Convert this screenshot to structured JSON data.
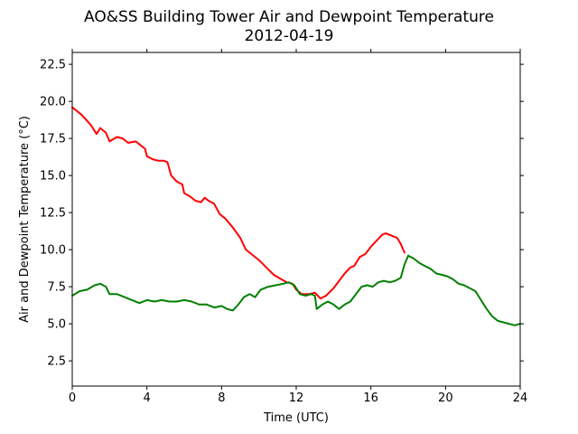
{
  "chart_data": {
    "type": "line",
    "title": "AO&SS Building Tower Air and Dewpoint Temperature",
    "subtitle": "2012-04-19",
    "xlabel": "Time (UTC)",
    "ylabel": "Air and Dewpoint Temperature (°C)",
    "xlim": [
      0,
      24
    ],
    "ylim": [
      0.8,
      23.3
    ],
    "xticks": [
      0,
      4,
      8,
      12,
      16,
      20,
      24
    ],
    "yticks": [
      2.5,
      5.0,
      7.5,
      10.0,
      12.5,
      15.0,
      17.5,
      20.0,
      22.5
    ],
    "grid": false,
    "series": [
      {
        "color": "#ff0000",
        "x": [
          0.0,
          0.5,
          1.0,
          1.3,
          1.5,
          1.8,
          2.0,
          2.4,
          2.7,
          3.0,
          3.4,
          3.7,
          3.9,
          4.0,
          4.3,
          4.6,
          4.9,
          5.1,
          5.3,
          5.6,
          5.9,
          6.0,
          6.3,
          6.6,
          6.9,
          7.1,
          7.3,
          7.6,
          7.9,
          8.2,
          8.6,
          9.0,
          9.3,
          9.6,
          10.0,
          10.4,
          10.8,
          11.2,
          11.5,
          11.8,
          12.0,
          12.3,
          12.7,
          13.0,
          13.3,
          13.6,
          14.0,
          14.3,
          14.6,
          14.9,
          15.1,
          15.4,
          15.7,
          16.0,
          16.3,
          16.6,
          16.8,
          17.0,
          17.2,
          17.4,
          17.6,
          17.8
        ],
        "y": [
          19.6,
          19.1,
          18.4,
          17.8,
          18.2,
          17.9,
          17.3,
          17.6,
          17.5,
          17.2,
          17.3,
          17.0,
          16.8,
          16.3,
          16.1,
          16.0,
          16.0,
          15.9,
          15.0,
          14.6,
          14.4,
          13.8,
          13.6,
          13.3,
          13.2,
          13.5,
          13.3,
          13.1,
          12.4,
          12.1,
          11.5,
          10.8,
          10.0,
          9.7,
          9.3,
          8.8,
          8.3,
          8.0,
          7.8,
          7.7,
          7.3,
          7.0,
          7.0,
          7.1,
          6.7,
          6.9,
          7.4,
          7.9,
          8.4,
          8.8,
          8.9,
          9.5,
          9.7,
          10.2,
          10.6,
          11.0,
          11.1,
          11.0,
          10.9,
          10.8,
          10.4,
          9.8
        ]
      },
      {
        "color": "#008000",
        "x": [
          0.0,
          0.4,
          0.8,
          1.2,
          1.5,
          1.8,
          2.0,
          2.4,
          2.8,
          3.2,
          3.6,
          4.0,
          4.4,
          4.8,
          5.2,
          5.6,
          6.0,
          6.4,
          6.8,
          7.2,
          7.6,
          8.0,
          8.3,
          8.6,
          8.9,
          9.2,
          9.5,
          9.8,
          10.1,
          10.5,
          10.9,
          11.3,
          11.6,
          11.9,
          12.2,
          12.5,
          12.8,
          13.0,
          13.1,
          13.4,
          13.7,
          14.0,
          14.3,
          14.6,
          14.9,
          15.2,
          15.5,
          15.8,
          16.1,
          16.4,
          16.7,
          17.0,
          17.3,
          17.6,
          17.8,
          18.0,
          18.3,
          18.6,
          18.9,
          19.2,
          19.5,
          19.8,
          20.1,
          20.4,
          20.7,
          21.0,
          21.3,
          21.6,
          21.9,
          22.2,
          22.5,
          22.8,
          23.1,
          23.4,
          23.7,
          24.0
        ],
        "y": [
          6.9,
          7.2,
          7.3,
          7.6,
          7.7,
          7.5,
          7.0,
          7.0,
          6.8,
          6.6,
          6.4,
          6.6,
          6.5,
          6.6,
          6.5,
          6.5,
          6.6,
          6.5,
          6.3,
          6.3,
          6.1,
          6.2,
          6.0,
          5.9,
          6.3,
          6.8,
          7.0,
          6.8,
          7.3,
          7.5,
          7.6,
          7.7,
          7.8,
          7.6,
          7.0,
          6.9,
          7.0,
          6.9,
          6.0,
          6.3,
          6.5,
          6.3,
          6.0,
          6.3,
          6.5,
          7.0,
          7.5,
          7.6,
          7.5,
          7.8,
          7.9,
          7.8,
          7.9,
          8.1,
          9.0,
          9.6,
          9.4,
          9.1,
          8.9,
          8.7,
          8.4,
          8.3,
          8.2,
          8.0,
          7.7,
          7.6,
          7.4,
          7.2,
          6.6,
          6.0,
          5.5,
          5.2,
          5.1,
          5.0,
          4.9,
          5.0
        ]
      }
    ]
  }
}
